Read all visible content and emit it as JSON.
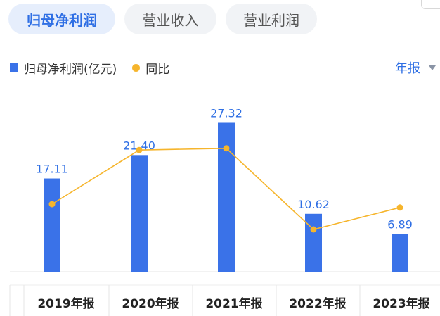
{
  "tabs": [
    {
      "label": "归母净利润",
      "active": true
    },
    {
      "label": "营业收入",
      "active": false
    },
    {
      "label": "营业利润",
      "active": false
    }
  ],
  "legend": {
    "bar_label": "归母净利润(亿元)",
    "line_label": "同比"
  },
  "period_selector": {
    "label": "年报",
    "icon": "caret-down-icon"
  },
  "colors": {
    "bar": "#3a72e8",
    "line": "#f6b52c",
    "accent": "#2f6fe4",
    "label": "#2f6fe4"
  },
  "chart_data": {
    "type": "bar",
    "categories": [
      "2019年报",
      "2020年报",
      "2021年报",
      "2022年报",
      "2023年报"
    ],
    "series": [
      {
        "name": "归母净利润(亿元)",
        "type": "bar",
        "values": [
          17.11,
          21.4,
          27.32,
          10.62,
          6.89
        ],
        "value_labels": [
          "17.11",
          "21.40",
          "27.32",
          "10.62",
          "6.89"
        ]
      },
      {
        "name": "同比",
        "type": "line",
        "values": [
          40,
          72,
          73,
          25,
          38
        ]
      }
    ],
    "ylim_bar": [
      0,
      31
    ],
    "ylim_line": [
      0,
      100
    ],
    "grid": false,
    "legend_position": "top-left"
  }
}
